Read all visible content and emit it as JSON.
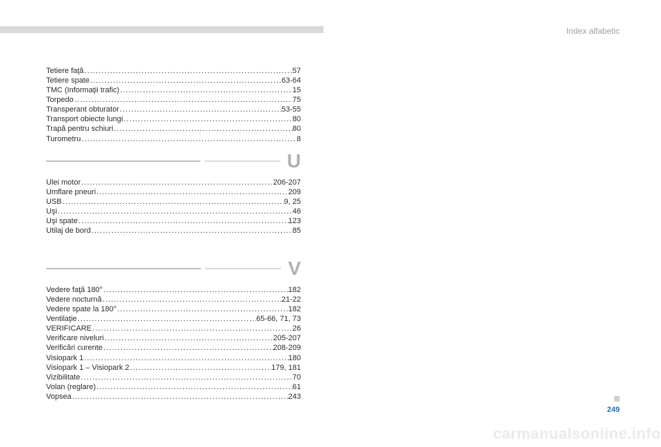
{
  "header": {
    "label": "Index alfabetic"
  },
  "page_number": "249",
  "watermark": "carmanualsonline.info",
  "dots": "........................................................................................",
  "sections": {
    "letter_u": "U",
    "letter_v": "V"
  },
  "block_t": [
    {
      "label": "Tetiere faţă",
      "page": "57"
    },
    {
      "label": "Tetiere spate",
      "page": "63-64"
    },
    {
      "label": "TMC (Informaţii trafic)",
      "page": "15"
    },
    {
      "label": "Torpedo",
      "page": "75"
    },
    {
      "label": "Transperant obturator",
      "page": "53-55"
    },
    {
      "label": "Transport obiecte lungi",
      "page": "80"
    },
    {
      "label": "Trapă pentru schiuri",
      "page": "80"
    },
    {
      "label": "Turometru",
      "page": "8"
    }
  ],
  "block_u": [
    {
      "label": "Ulei motor",
      "page": "206-207"
    },
    {
      "label": "Umflare pneuri",
      "page": "209"
    },
    {
      "label": "USB",
      "page": "9, 25"
    },
    {
      "label": "Uşi",
      "page": "46"
    },
    {
      "label": "Uşi spate",
      "page": "123"
    },
    {
      "label": "Utilaj de bord",
      "page": "85"
    }
  ],
  "block_v": [
    {
      "label": "Vedere faţă 180°",
      "page": "182"
    },
    {
      "label": "Vedere nocturnă",
      "page": "21-22"
    },
    {
      "label": "Vedere spate la 180°",
      "page": "182"
    },
    {
      "label": "Ventilaţie",
      "page": "65-66, 71, 73"
    },
    {
      "label": "VERIFICARE",
      "page": "26"
    },
    {
      "label": "Verificare niveluri",
      "page": "205-207"
    },
    {
      "label": "Verificări curente",
      "page": "208-209"
    },
    {
      "label": "Visiopark 1",
      "page": "180"
    },
    {
      "label": "Visiopark 1 – Visiopark 2",
      "page": "179, 181"
    },
    {
      "label": "Vizibilitate",
      "page": "70"
    },
    {
      "label": "Volan (reglare)",
      "page": "61"
    },
    {
      "label": "Vopsea",
      "page": "243"
    }
  ]
}
